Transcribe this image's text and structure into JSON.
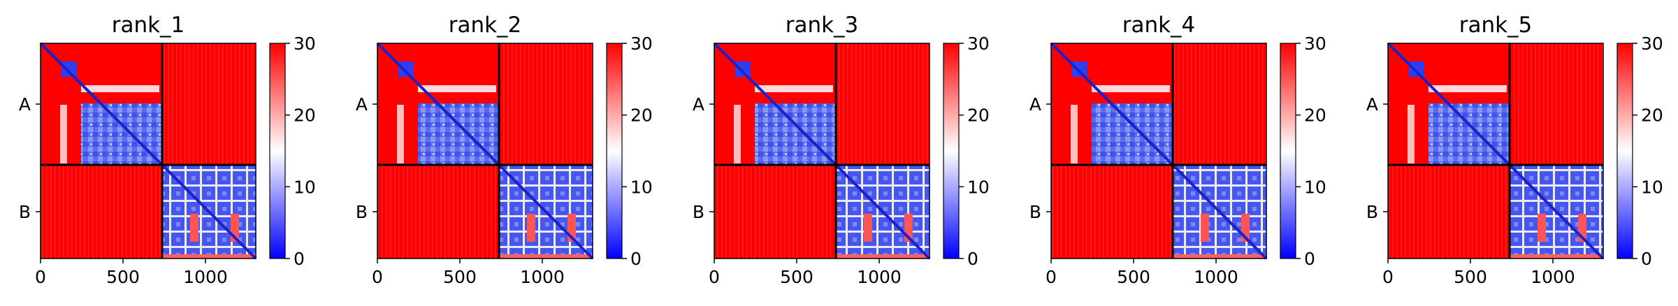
{
  "chart_data": [
    {
      "type": "heatmap",
      "title": "rank_1",
      "chains": [
        "A",
        "B"
      ],
      "xticks": [
        "0",
        "500",
        "1000"
      ],
      "colorbar_ticks": [
        "0",
        "10",
        "20",
        "30"
      ],
      "colorbar_range": [
        0,
        30
      ],
      "colormap": [
        "#0000ff",
        "#ffffff",
        "#ff0000"
      ]
    },
    {
      "type": "heatmap",
      "title": "rank_2",
      "chains": [
        "A",
        "B"
      ],
      "xticks": [
        "0",
        "500",
        "1000"
      ],
      "colorbar_ticks": [
        "0",
        "10",
        "20",
        "30"
      ],
      "colorbar_range": [
        0,
        30
      ],
      "colormap": [
        "#0000ff",
        "#ffffff",
        "#ff0000"
      ]
    },
    {
      "type": "heatmap",
      "title": "rank_3",
      "chains": [
        "A",
        "B"
      ],
      "xticks": [
        "0",
        "500",
        "1000"
      ],
      "colorbar_ticks": [
        "0",
        "10",
        "20",
        "30"
      ],
      "colorbar_range": [
        0,
        30
      ],
      "colormap": [
        "#0000ff",
        "#ffffff",
        "#ff0000"
      ]
    },
    {
      "type": "heatmap",
      "title": "rank_4",
      "chains": [
        "A",
        "B"
      ],
      "xticks": [
        "0",
        "500",
        "1000"
      ],
      "colorbar_ticks": [
        "0",
        "10",
        "20",
        "30"
      ],
      "colorbar_range": [
        0,
        30
      ],
      "colormap": [
        "#0000ff",
        "#ffffff",
        "#ff0000"
      ]
    },
    {
      "type": "heatmap",
      "title": "rank_5",
      "chains": [
        "A",
        "B"
      ],
      "xticks": [
        "0",
        "500",
        "1000"
      ],
      "colorbar_ticks": [
        "0",
        "10",
        "20",
        "30"
      ],
      "colorbar_range": [
        0,
        30
      ],
      "colormap": [
        "#0000ff",
        "#ffffff",
        "#ff0000"
      ]
    }
  ]
}
